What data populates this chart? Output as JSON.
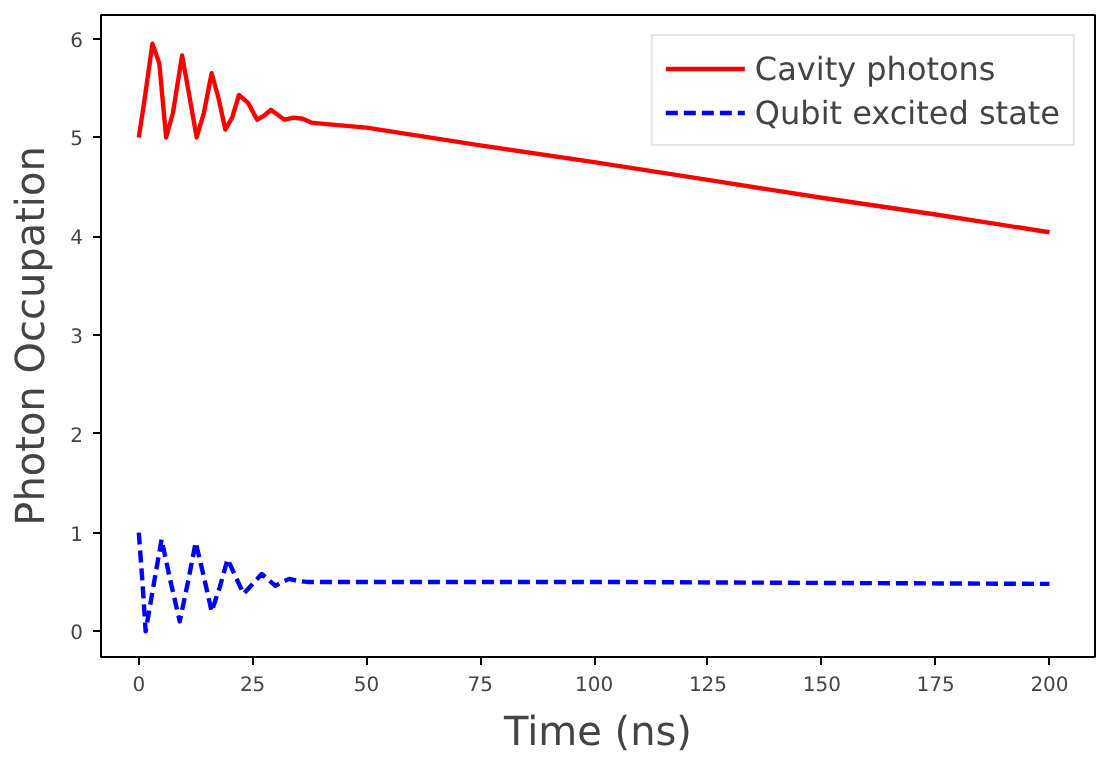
{
  "chart_data": {
    "type": "line",
    "xlabel": "Time (ns)",
    "ylabel": "Photon Occupation",
    "xlim": [
      -8.3,
      210
    ],
    "ylim": [
      -0.26,
      6.24
    ],
    "xticks": [
      0,
      25,
      50,
      75,
      100,
      125,
      150,
      175,
      200
    ],
    "yticks": [
      0,
      1,
      2,
      3,
      4,
      5,
      6
    ],
    "grid": false,
    "legend": "top right",
    "series": [
      {
        "name": "Cavity photons",
        "color": "#ff0000",
        "line_style": "solid",
        "x": [
          0,
          1,
          3,
          4.5,
          6,
          7.5,
          9.5,
          11,
          12.7,
          14.3,
          16,
          17.5,
          19,
          20.5,
          22,
          24,
          26,
          27.5,
          29,
          30.5,
          32,
          34,
          36,
          38,
          40,
          50,
          75,
          100,
          125,
          150,
          175,
          200
        ],
        "values": [
          5.0,
          5.3,
          5.95,
          5.75,
          5.0,
          5.25,
          5.83,
          5.45,
          5.0,
          5.25,
          5.65,
          5.4,
          5.08,
          5.2,
          5.43,
          5.35,
          5.18,
          5.22,
          5.28,
          5.23,
          5.18,
          5.2,
          5.19,
          5.15,
          5.14,
          5.1,
          4.92,
          4.75,
          4.57,
          4.39,
          4.22,
          4.04
        ]
      },
      {
        "name": "Qubit excited state",
        "color": "#0000ff",
        "line_style": "dashed",
        "x": [
          0,
          0.8,
          1.5,
          3,
          5,
          7,
          9,
          10.8,
          12.5,
          14.3,
          16,
          17.8,
          19.5,
          21.3,
          23,
          25,
          27,
          28.5,
          30,
          31.5,
          33,
          35,
          37,
          50,
          100,
          150,
          200
        ],
        "values": [
          1.0,
          0.5,
          0.0,
          0.4,
          0.93,
          0.5,
          0.1,
          0.5,
          0.9,
          0.55,
          0.2,
          0.45,
          0.73,
          0.55,
          0.38,
          0.48,
          0.58,
          0.52,
          0.46,
          0.5,
          0.53,
          0.51,
          0.5,
          0.5,
          0.5,
          0.49,
          0.48
        ]
      }
    ]
  }
}
